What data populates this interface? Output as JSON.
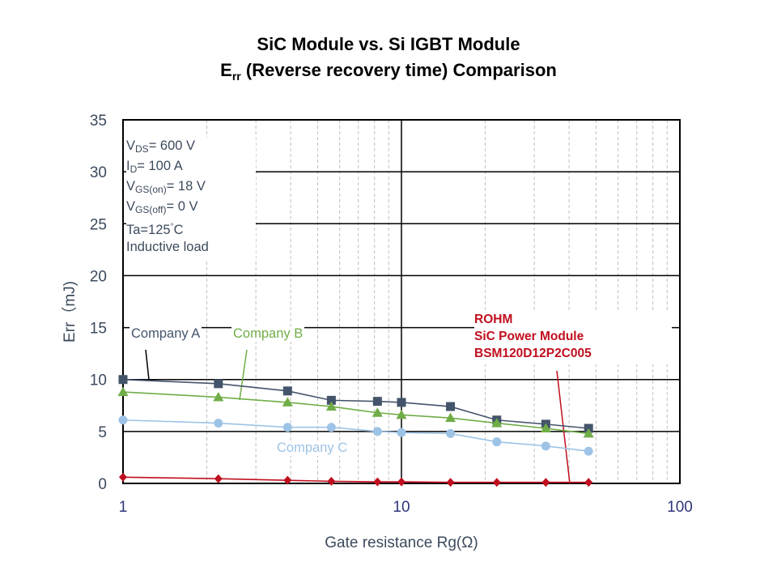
{
  "title": {
    "line1": "SiC Module vs. Si IGBT Module",
    "line2_main": "E",
    "line2_sub": "rr",
    "line2_rest": " (Reverse recovery time) Comparison"
  },
  "conditions": [
    {
      "main": "V",
      "sub": "DS",
      "rest": "= 600 V"
    },
    {
      "main": "I",
      "sub": "D",
      "rest": "= 100 A"
    },
    {
      "main": "V",
      "sub": "GS(on)",
      "rest": "= 18 V"
    },
    {
      "main": "V",
      "sub": "GS(off)",
      "rest": "= 0 V"
    },
    {
      "main": "Ta=125",
      "sup": "°",
      "rest": "C"
    },
    {
      "main": "Inductive  load"
    }
  ],
  "rohm_label": [
    "ROHM",
    "SiC Power Module",
    "BSM120D12P2C005"
  ],
  "colors": {
    "company_a": "#44546a",
    "company_b": "#70ad47",
    "company_c": "#9dc3e6",
    "rohm": "#c00f1e",
    "axis_text": "#3c4a5c",
    "x_tick_text": "#2f3578"
  },
  "chart_data": {
    "type": "line",
    "title": "SiC Module vs. Si IGBT Module — Err (Reverse recovery time) Comparison",
    "xlabel": "Gate resistance Rg(Ω)",
    "ylabel": "Err（mJ)",
    "xscale": "log",
    "xlim": [
      1,
      100
    ],
    "ylim": [
      0,
      35
    ],
    "xticks": [
      "1",
      "10",
      "100"
    ],
    "yticks": [
      "0",
      "5",
      "10",
      "15",
      "20",
      "25",
      "30",
      "35"
    ],
    "grid": true,
    "x": [
      1,
      2.2,
      3.9,
      5.6,
      8.2,
      10,
      15,
      22,
      33,
      47
    ],
    "series": [
      {
        "name": "Company A",
        "marker": "square",
        "color": "#44546a",
        "values": [
          10.0,
          9.6,
          8.9,
          8.0,
          7.9,
          7.8,
          7.4,
          6.1,
          5.7,
          5.3
        ]
      },
      {
        "name": "Company B",
        "marker": "triangle",
        "color": "#70ad47",
        "values": [
          8.8,
          8.3,
          7.8,
          7.4,
          6.8,
          6.6,
          6.3,
          5.8,
          5.3,
          4.8
        ]
      },
      {
        "name": "Company C",
        "marker": "circle",
        "color": "#9dc3e6",
        "values": [
          6.1,
          5.8,
          5.4,
          5.4,
          5.0,
          4.9,
          4.8,
          4.0,
          3.6,
          3.1
        ]
      },
      {
        "name": "ROHM SiC Power Module BSM120D12P2C005",
        "marker": "diamond",
        "color": "#c00f1e",
        "values": [
          0.6,
          0.45,
          0.3,
          0.2,
          0.15,
          0.15,
          0.1,
          0.1,
          0.1,
          0.1
        ]
      }
    ],
    "annotations": [
      "Company A",
      "Company B",
      "Company C",
      "ROHM SiC Power Module BSM120D12P2C005"
    ]
  }
}
